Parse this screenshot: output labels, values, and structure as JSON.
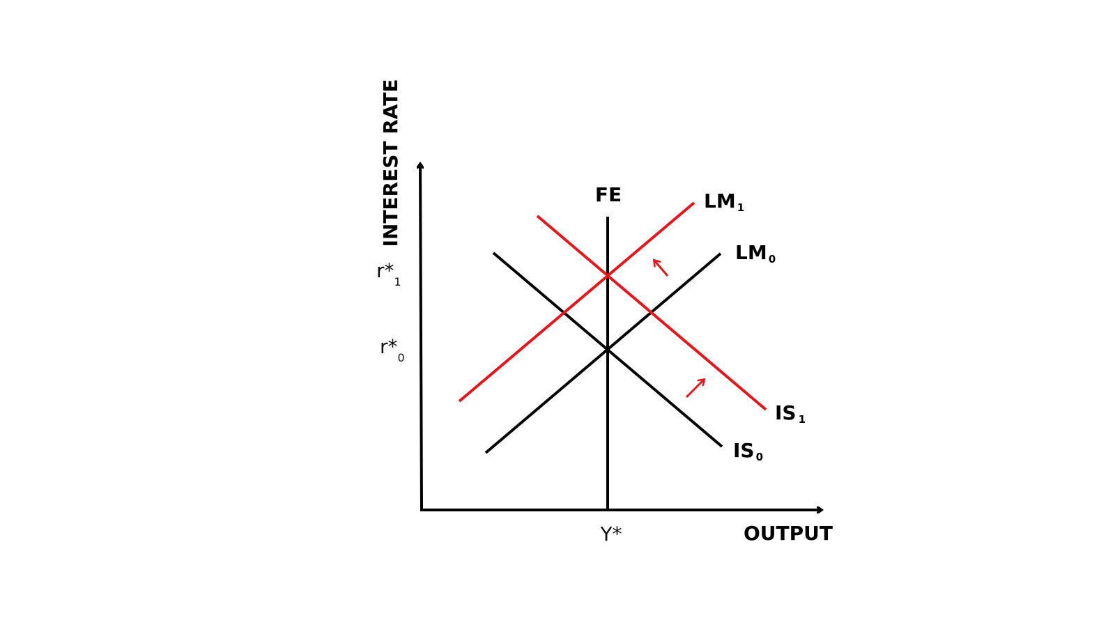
{
  "diagram": {
    "y_axis_label": "INTEREST RATE",
    "x_axis_label": "OUTPUT",
    "fe_label": "FE",
    "x_tick": "Y*",
    "y_ticks": [
      {
        "base": "r*",
        "sub": "1"
      },
      {
        "base": "r*",
        "sub": "0"
      }
    ],
    "curves": [
      {
        "base": "LM",
        "sub": "1",
        "color": "#e8141a"
      },
      {
        "base": "LM",
        "sub": "0",
        "color": "#000000"
      },
      {
        "base": "IS",
        "sub": "1",
        "color": "#e8141a"
      },
      {
        "base": "IS",
        "sub": "0",
        "color": "#000000"
      }
    ],
    "colors": {
      "axis": "#000000",
      "shifted": "#e8141a",
      "original": "#000000"
    }
  }
}
